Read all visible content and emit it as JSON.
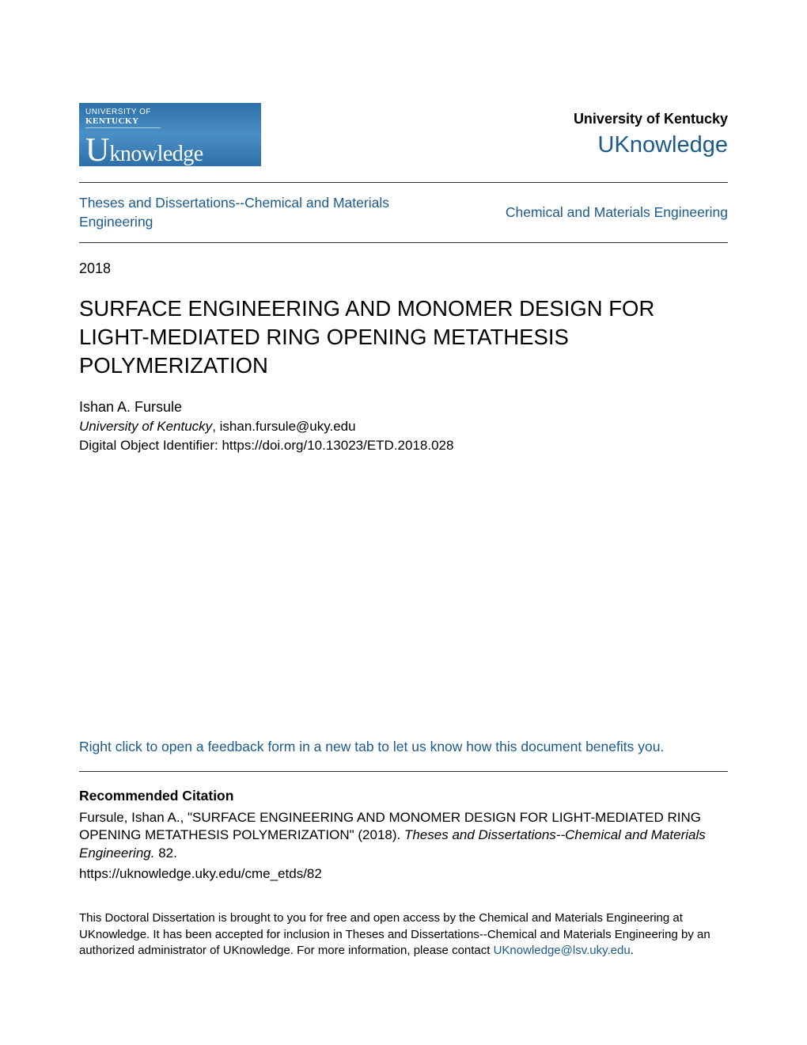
{
  "colors": {
    "link_color": "#1b5a8f",
    "text_color": "#000000",
    "background": "#ffffff",
    "divider_color": "#333333",
    "logo_bg_top": "#2d6fa8",
    "logo_bg_mid": "#4a8fc5"
  },
  "logo": {
    "top_text": "UNIVERSITY OF",
    "kentucky": "KENTUCKY",
    "main_u": "U",
    "main_rest": "knowledge"
  },
  "header": {
    "university": "University of Kentucky",
    "repository": "UKnowledge"
  },
  "breadcrumb": {
    "left": "Theses and Dissertations--Chemical and Materials Engineering",
    "right": "Chemical and Materials Engineering"
  },
  "year": "2018",
  "title": "SURFACE ENGINEERING AND MONOMER DESIGN FOR LIGHT-MEDIATED RING OPENING METATHESIS POLYMERIZATION",
  "author_name": "Ishan A. Fursule",
  "affiliation": "University of Kentucky",
  "email": ", ishan.fursule@uky.edu",
  "doi": "Digital Object Identifier: https://doi.org/10.13023/ETD.2018.028",
  "feedback_link": "Right click to open a feedback form in a new tab to let us know how this document benefits you.",
  "citation": {
    "heading": "Recommended Citation",
    "text_prefix": "Fursule, Ishan A., \"SURFACE ENGINEERING AND MONOMER DESIGN FOR LIGHT-MEDIATED RING OPENING METATHESIS POLYMERIZATION\" (2018). ",
    "text_italic": "Theses and Dissertations--Chemical and Materials Engineering.",
    "text_suffix": " 82.",
    "url": "https://uknowledge.uky.edu/cme_etds/82"
  },
  "footer": {
    "text_prefix": "This Doctoral Dissertation is brought to you for free and open access by the Chemical and Materials Engineering at UKnowledge. It has been accepted for inclusion in Theses and Dissertations--Chemical and Materials Engineering by an authorized administrator of UKnowledge. For more information, please contact ",
    "link_text": "UKnowledge@lsv.uky.edu",
    "text_suffix": "."
  }
}
